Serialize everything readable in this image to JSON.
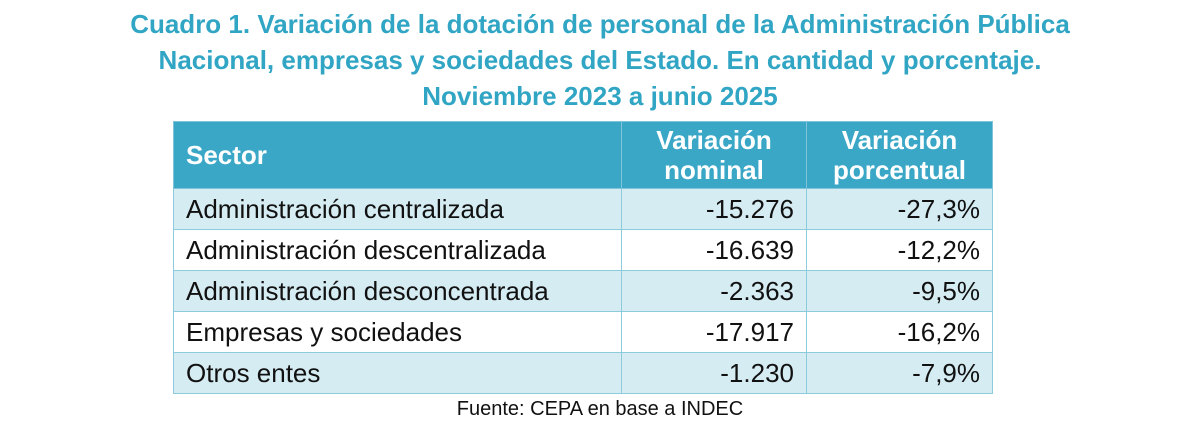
{
  "title": {
    "line1": "Cuadro 1. Variación de la dotación de personal de la Administración Pública",
    "line2": "Nacional, empresas y sociedades del Estado. En cantidad y porcentaje.",
    "line3": "Noviembre 2023 a junio 2025"
  },
  "table": {
    "headers": [
      "Sector",
      "Variación nominal",
      "Variación porcentual"
    ],
    "rows": [
      {
        "sector": "Administración centralizada",
        "nominal": "-15.276",
        "percent": "-27,3%"
      },
      {
        "sector": "Administración descentralizada",
        "nominal": "-16.639",
        "percent": "-12,2%"
      },
      {
        "sector": "Administración desconcentrada",
        "nominal": "-2.363",
        "percent": "-9,5%"
      },
      {
        "sector": "Empresas y sociedades",
        "nominal": "-17.917",
        "percent": "-16,2%"
      },
      {
        "sector": "Otros entes",
        "nominal": "-1.230",
        "percent": "-7,9%"
      }
    ]
  },
  "source": "Fuente: CEPA en base a INDEC",
  "colors": {
    "title": "#31a5c4",
    "header_bg": "#3aa7c7",
    "row_odd_bg": "#d5ecf3",
    "row_even_bg": "#ffffff"
  }
}
